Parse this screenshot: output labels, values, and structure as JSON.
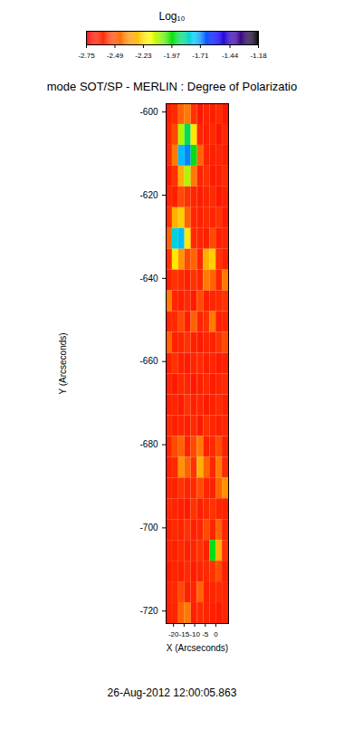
{
  "chart_data": {
    "type": "heatmap",
    "title": "mode SOT/SP - MERLIN : Degree of Polarizatio",
    "x_label": "X (Arcseconds)",
    "y_label": "Y (Arcseconds)",
    "xlim": [
      -23.5,
      6
    ],
    "ylim": [
      -723,
      -598
    ],
    "xticks": [
      -20,
      -15,
      -10,
      -5,
      0
    ],
    "yticks": [
      -600,
      -620,
      -640,
      -660,
      -680,
      -700,
      -720
    ],
    "x_bins": [
      -23.5,
      -20.55,
      -17.6,
      -14.65,
      -11.7,
      -8.75,
      -5.8,
      -2.85,
      0.1,
      3.05,
      6.0
    ],
    "y_bins": [
      -598,
      -603,
      -608,
      -613,
      -618,
      -623,
      -628,
      -633,
      -638,
      -643,
      -648,
      -653,
      -658,
      -663,
      -668,
      -673,
      -678,
      -683,
      -688,
      -693,
      -698,
      -703,
      -708,
      -713,
      -718,
      -723
    ],
    "cells": [
      [
        -2.62,
        -2.58,
        -2.45,
        -2.4,
        -2.55,
        -2.65,
        -2.6,
        -2.63,
        -2.58,
        -2.65
      ],
      [
        -2.6,
        -2.5,
        -2.1,
        -1.9,
        -2.2,
        -2.6,
        -2.62,
        -2.58,
        -2.66,
        -2.6
      ],
      [
        -2.58,
        -2.4,
        -1.75,
        -1.7,
        -1.95,
        -2.45,
        -2.6,
        -2.62,
        -2.6,
        -2.63
      ],
      [
        -2.65,
        -2.55,
        -2.3,
        -2.1,
        -2.4,
        -2.6,
        -2.55,
        -2.64,
        -2.62,
        -2.58
      ],
      [
        -2.6,
        -2.62,
        -2.5,
        -2.55,
        -2.6,
        -2.63,
        -2.6,
        -2.58,
        -2.65,
        -2.62
      ],
      [
        -2.55,
        -2.3,
        -2.25,
        -2.45,
        -2.6,
        -2.62,
        -2.58,
        -2.6,
        -2.55,
        -2.64
      ],
      [
        -2.45,
        -1.8,
        -1.75,
        -2.2,
        -2.58,
        -2.6,
        -2.62,
        -2.5,
        -2.62,
        -2.6
      ],
      [
        -2.55,
        -2.2,
        -2.35,
        -2.5,
        -2.45,
        -2.6,
        -2.3,
        -2.25,
        -2.55,
        -2.62
      ],
      [
        -2.62,
        -2.55,
        -2.58,
        -2.62,
        -2.55,
        -2.6,
        -2.4,
        -2.45,
        -2.6,
        -2.4
      ],
      [
        -2.4,
        -2.6,
        -2.62,
        -2.58,
        -2.64,
        -2.5,
        -2.62,
        -2.6,
        -2.58,
        -2.55
      ],
      [
        -2.6,
        -2.58,
        -2.5,
        -2.62,
        -2.45,
        -2.6,
        -2.55,
        -2.4,
        -2.62,
        -2.6
      ],
      [
        -2.45,
        -2.62,
        -2.6,
        -2.55,
        -2.62,
        -2.64,
        -2.6,
        -2.62,
        -2.55,
        -2.5
      ],
      [
        -2.62,
        -2.55,
        -2.62,
        -2.64,
        -2.6,
        -2.58,
        -2.62,
        -2.6,
        -2.64,
        -2.62
      ],
      [
        -2.6,
        -2.64,
        -2.58,
        -2.6,
        -2.65,
        -2.62,
        -2.58,
        -2.64,
        -2.6,
        -2.58
      ],
      [
        -2.62,
        -2.6,
        -2.64,
        -2.55,
        -2.62,
        -2.6,
        -2.64,
        -2.62,
        -2.58,
        -2.62
      ],
      [
        -2.58,
        -2.62,
        -2.6,
        -2.62,
        -2.58,
        -2.64,
        -2.55,
        -2.6,
        -2.62,
        -2.6
      ],
      [
        -2.6,
        -2.5,
        -2.45,
        -2.6,
        -2.5,
        -2.4,
        -2.62,
        -2.58,
        -2.5,
        -2.62
      ],
      [
        -2.62,
        -2.58,
        -2.35,
        -2.45,
        -2.55,
        -2.3,
        -2.45,
        -2.6,
        -2.4,
        -2.58
      ],
      [
        -2.6,
        -2.62,
        -2.55,
        -2.6,
        -2.58,
        -2.5,
        -2.6,
        -2.62,
        -2.45,
        -2.35
      ],
      [
        -2.58,
        -2.6,
        -2.62,
        -2.64,
        -2.55,
        -2.62,
        -2.58,
        -2.55,
        -2.6,
        -2.62
      ],
      [
        -2.62,
        -2.58,
        -2.6,
        -2.55,
        -2.62,
        -2.6,
        -2.5,
        -2.6,
        -2.45,
        -2.6
      ],
      [
        -2.6,
        -2.62,
        -2.58,
        -2.62,
        -2.6,
        -2.55,
        -2.62,
        -1.95,
        -2.3,
        -2.55
      ],
      [
        -2.64,
        -2.6,
        -2.62,
        -2.58,
        -2.64,
        -2.6,
        -2.58,
        -2.55,
        -2.5,
        -2.62
      ],
      [
        -2.6,
        -2.58,
        -2.5,
        -2.62,
        -2.6,
        -2.45,
        -2.62,
        -2.6,
        -2.58,
        -2.6
      ],
      [
        -2.62,
        -2.6,
        -2.45,
        -2.4,
        -2.62,
        -2.58,
        -2.6,
        -2.62,
        -2.64,
        -2.6
      ]
    ],
    "colorbar": {
      "label": "Log₁₀",
      "range": [
        -2.75,
        -1.18
      ],
      "ticks": [
        -2.75,
        -2.49,
        -2.23,
        -1.97,
        -1.71,
        -1.44,
        -1.18
      ]
    },
    "caption": "26-Aug-2012 12:00:05.863"
  }
}
